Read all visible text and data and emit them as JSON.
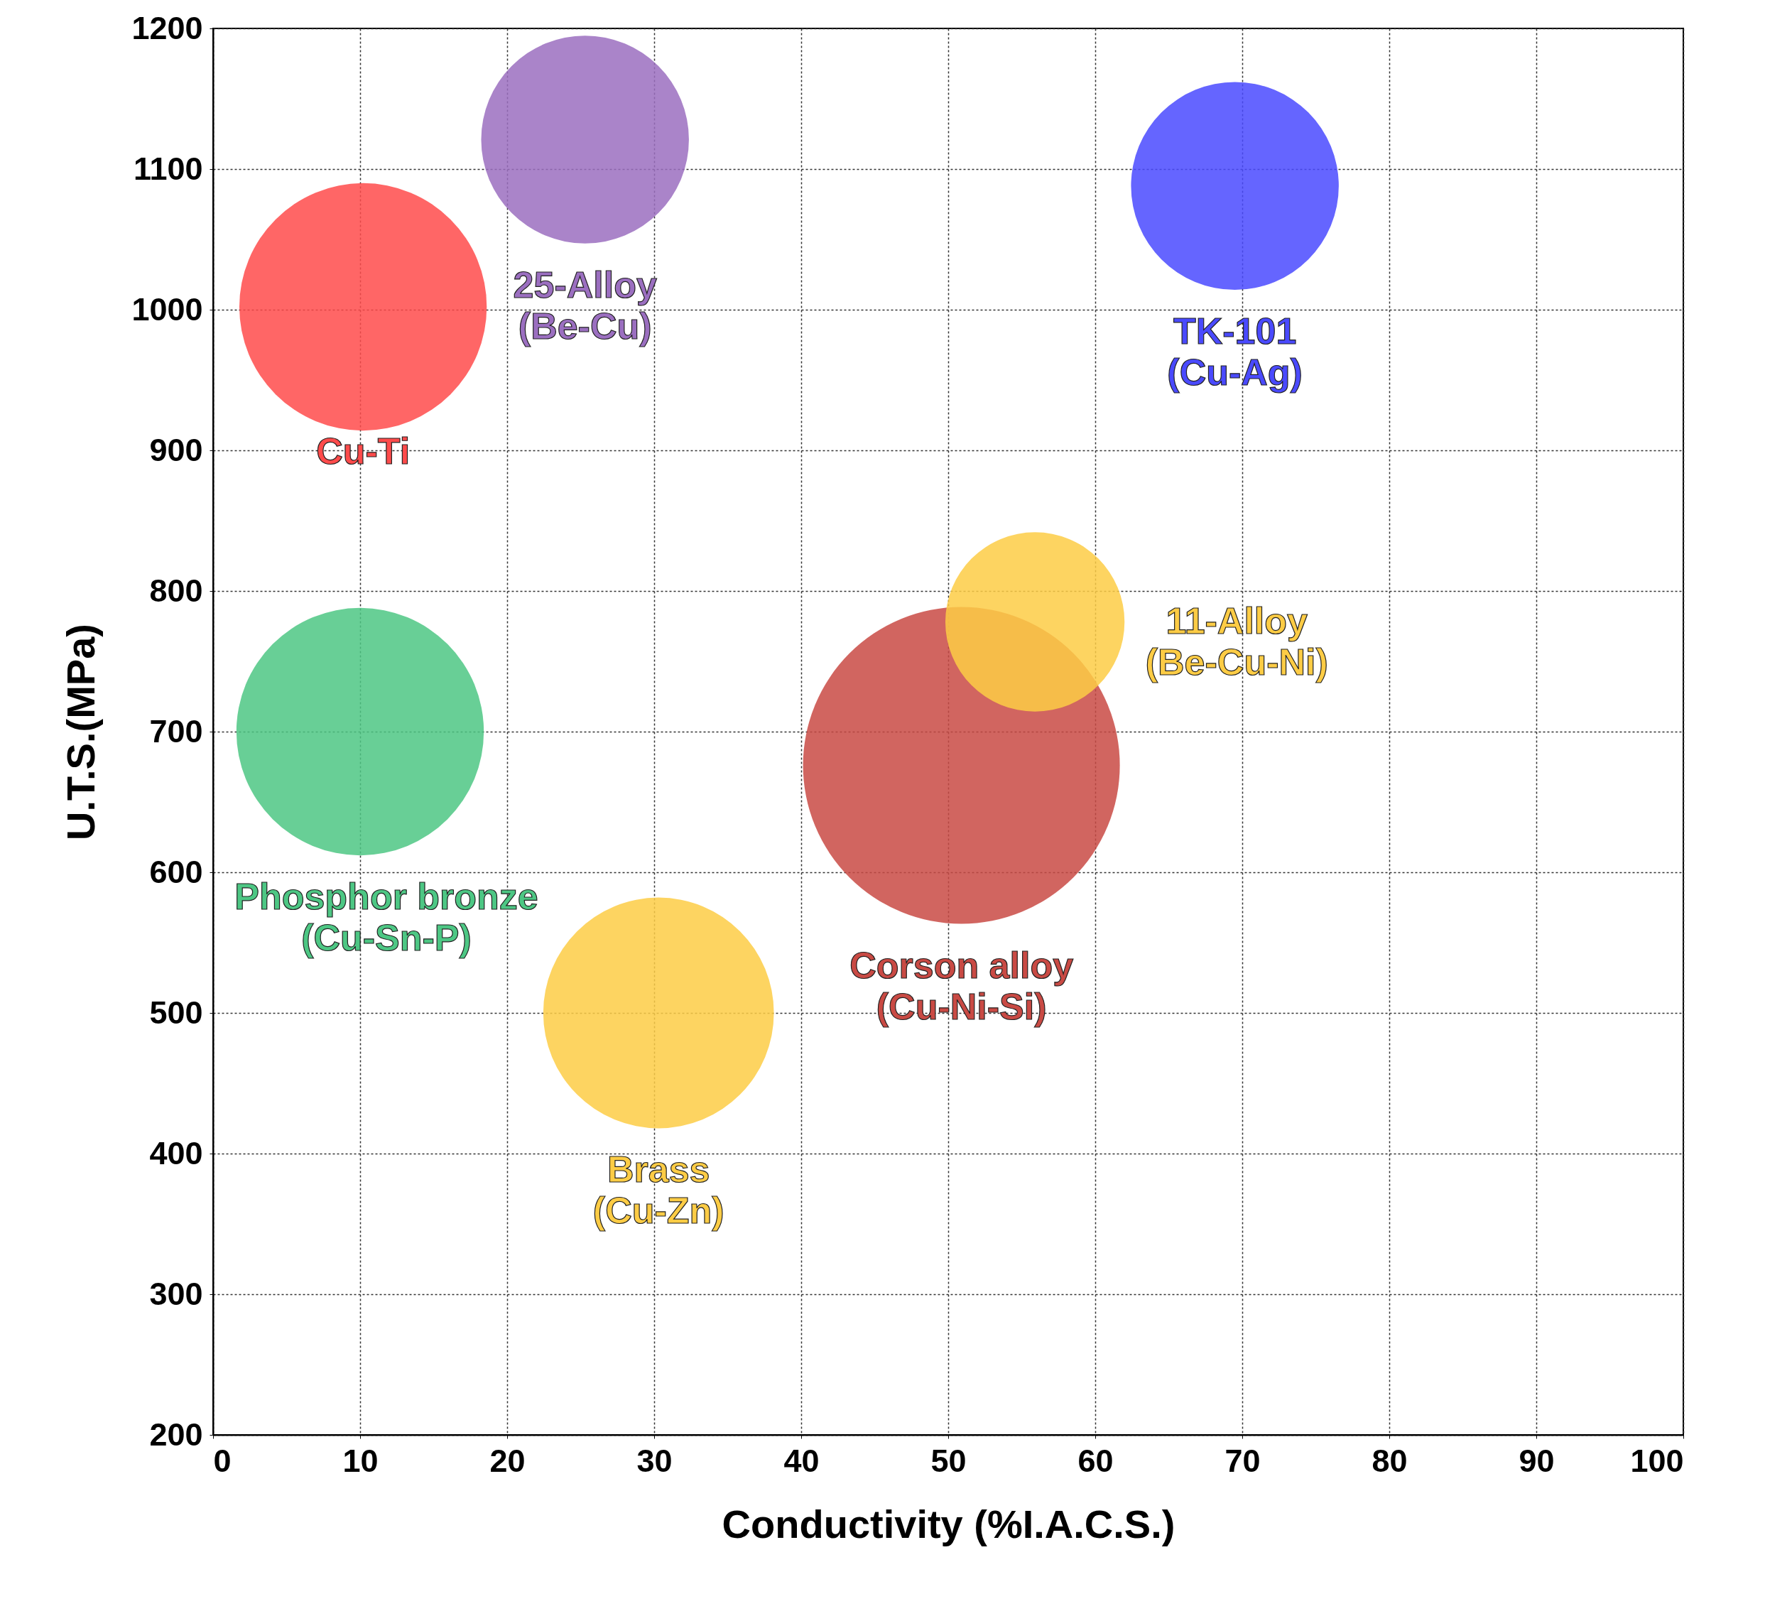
{
  "chart_data": {
    "type": "bubble",
    "xlabel": "Conductivity (%I.A.C.S.)",
    "ylabel": "U.T.S.(MPa)",
    "series": [
      {
        "name": "Cu-Ti",
        "color": "#ff4b4b",
        "x": [
          10.2
        ],
        "values": [
          1002
        ],
        "sizes": [
          0.61
        ]
      },
      {
        "name": "25-Alloy\n(Be-Cu)",
        "color": "#9b6fc0",
        "x": [
          25.3
        ],
        "values": [
          1121
        ],
        "sizes": [
          0.43
        ]
      },
      {
        "name": "TK-101\n(Cu-Ag)",
        "color": "#4a4aff",
        "x": [
          69.5
        ],
        "values": [
          1088
        ],
        "sizes": [
          0.43
        ]
      },
      {
        "name": "Phosphor bronze\n(Cu-Sn-P)",
        "color": "#4dc784",
        "x": [
          10
        ],
        "values": [
          700
        ],
        "sizes": [
          0.61
        ]
      },
      {
        "name": "Brass\n(Cu-Zn)",
        "color": "#fdcc45",
        "x": [
          30.3
        ],
        "values": [
          500
        ],
        "sizes": [
          0.53
        ]
      },
      {
        "name": "Corson alloy\n(Cu-Ni-Si)",
        "color": "#c94a44",
        "x": [
          50.9
        ],
        "values": [
          676
        ],
        "sizes": [
          1
        ]
      },
      {
        "name": "11-Alloy\n(Be-Cu-Ni)",
        "color": "#fdcc45",
        "x": [
          55.9
        ],
        "values": [
          778
        ],
        "sizes": [
          0.32
        ]
      }
    ],
    "xlim": [
      0,
      100
    ],
    "xticks": [
      0,
      10,
      20,
      30,
      40,
      50,
      60,
      70,
      80,
      90,
      100
    ],
    "ylim": [
      200,
      1200
    ],
    "yticks": [
      200,
      300,
      400,
      500,
      600,
      700,
      800,
      900,
      1000,
      1100,
      1200
    ],
    "grid": true
  }
}
